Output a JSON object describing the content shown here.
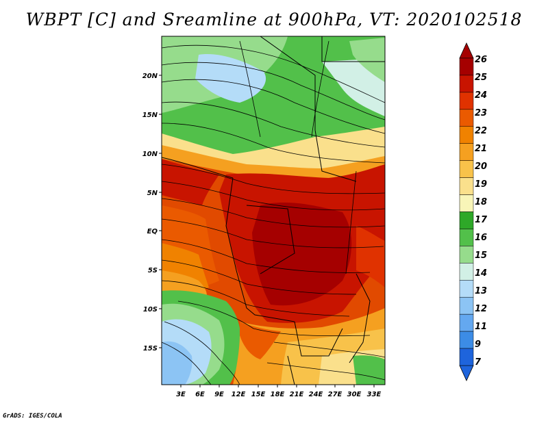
{
  "title": "WBPT [C] and Sreamline at 900hPa, VT: 2020102518",
  "footer": "GrADS: IGES/COLA",
  "map": {
    "lat_ticks": [
      "20N",
      "15N",
      "10N",
      "5N",
      "EQ",
      "5S",
      "10S",
      "15S"
    ],
    "lon_ticks": [
      "3E",
      "6E",
      "9E",
      "12E",
      "15E",
      "18E",
      "21E",
      "24E",
      "27E",
      "30E",
      "33E"
    ]
  },
  "colorbar": {
    "labels": [
      "26",
      "25",
      "24",
      "23",
      "22",
      "21",
      "20",
      "19",
      "18",
      "17",
      "16",
      "15",
      "14",
      "13",
      "12",
      "11",
      "9",
      "7"
    ],
    "colors": [
      "#a50000",
      "#c81400",
      "#e03200",
      "#ea5a00",
      "#f08200",
      "#f5a020",
      "#f8c24a",
      "#fae08c",
      "#f8f5b8",
      "#2ea828",
      "#52c04a",
      "#96dc8c",
      "#d2f0e6",
      "#b4dcf8",
      "#8cc4f4",
      "#64a8f0",
      "#3c8ce6",
      "#1e64dc"
    ]
  }
}
